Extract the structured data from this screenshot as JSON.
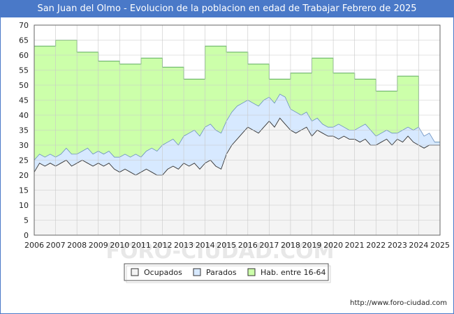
{
  "page": {
    "title": "San Juan del Olmo - Evolucion de la poblacion en edad de Trabajar Febrero de 2025",
    "url": "http://www.foro-ciudad.com",
    "watermark": "FORO-CIUDAD.COM"
  },
  "chart_data": {
    "type": "area",
    "title": "San Juan del Olmo - Evolucion de la poblacion en edad de Trabajar Febrero de 2025",
    "xlabel": "",
    "ylabel": "",
    "x_range": [
      2006,
      2025
    ],
    "ylim": [
      0,
      70
    ],
    "y_ticks": [
      "0",
      "5",
      "10",
      "15",
      "20",
      "25",
      "30",
      "35",
      "40",
      "45",
      "50",
      "55",
      "60",
      "65",
      "70"
    ],
    "x_ticks": [
      "2006",
      "2007",
      "2008",
      "2009",
      "2010",
      "2011",
      "2012",
      "2013",
      "2014",
      "2015",
      "2016",
      "2017",
      "2018",
      "2019",
      "2020",
      "2021",
      "2022",
      "2023",
      "2024",
      "2025"
    ],
    "grid": true,
    "legend_position": "bottom",
    "colors": {
      "hab": "#ccffaa",
      "hab_line": "#5aaa5a",
      "parados": "#d7e9ff",
      "parados_line": "#6a8fbf",
      "ocupados": "#f4f4f4",
      "ocupados_line": "#333333",
      "grid": "#c8c8c8"
    },
    "series": [
      {
        "name": "Hab. entre 16-64",
        "yearly_values": [
          63,
          65,
          61,
          58,
          57,
          59,
          56,
          52,
          63,
          61,
          57,
          52,
          54,
          59,
          54,
          52,
          48,
          53,
          31
        ]
      },
      {
        "name": "Parados",
        "x": [
          2006,
          2006.25,
          2006.5,
          2006.75,
          2007,
          2007.25,
          2007.5,
          2007.75,
          2008,
          2008.25,
          2008.5,
          2008.75,
          2009,
          2009.25,
          2009.5,
          2009.75,
          2010,
          2010.25,
          2010.5,
          2010.75,
          2011,
          2011.25,
          2011.5,
          2011.75,
          2012,
          2012.25,
          2012.5,
          2012.75,
          2013,
          2013.25,
          2013.5,
          2013.75,
          2014,
          2014.25,
          2014.5,
          2014.75,
          2015,
          2015.25,
          2015.5,
          2015.75,
          2016,
          2016.25,
          2016.5,
          2016.75,
          2017,
          2017.25,
          2017.5,
          2017.75,
          2018,
          2018.25,
          2018.5,
          2018.75,
          2019,
          2019.25,
          2019.5,
          2019.75,
          2020,
          2020.25,
          2020.5,
          2020.75,
          2021,
          2021.25,
          2021.5,
          2021.75,
          2022,
          2022.25,
          2022.5,
          2022.75,
          2023,
          2023.25,
          2023.5,
          2023.75,
          2024,
          2024.25,
          2024.5,
          2024.75,
          2025
        ],
        "values": [
          25,
          27,
          26,
          27,
          26,
          27,
          29,
          27,
          27,
          28,
          29,
          27,
          28,
          27,
          28,
          26,
          26,
          27,
          26,
          27,
          26,
          28,
          29,
          28,
          30,
          31,
          32,
          30,
          33,
          34,
          35,
          33,
          36,
          37,
          35,
          34,
          38,
          41,
          43,
          44,
          45,
          44,
          43,
          45,
          46,
          44,
          47,
          46,
          42,
          41,
          40,
          41,
          38,
          39,
          37,
          36,
          36,
          37,
          36,
          35,
          35,
          36,
          37,
          35,
          33,
          34,
          35,
          34,
          34,
          35,
          36,
          35,
          36,
          33,
          34,
          31,
          31
        ]
      },
      {
        "name": "Ocupados",
        "x": [
          2006,
          2006.25,
          2006.5,
          2006.75,
          2007,
          2007.25,
          2007.5,
          2007.75,
          2008,
          2008.25,
          2008.5,
          2008.75,
          2009,
          2009.25,
          2009.5,
          2009.75,
          2010,
          2010.25,
          2010.5,
          2010.75,
          2011,
          2011.25,
          2011.5,
          2011.75,
          2012,
          2012.25,
          2012.5,
          2012.75,
          2013,
          2013.25,
          2013.5,
          2013.75,
          2014,
          2014.25,
          2014.5,
          2014.75,
          2015,
          2015.25,
          2015.5,
          2015.75,
          2016,
          2016.25,
          2016.5,
          2016.75,
          2017,
          2017.25,
          2017.5,
          2017.75,
          2018,
          2018.25,
          2018.5,
          2018.75,
          2019,
          2019.25,
          2019.5,
          2019.75,
          2020,
          2020.25,
          2020.5,
          2020.75,
          2021,
          2021.25,
          2021.5,
          2021.75,
          2022,
          2022.25,
          2022.5,
          2022.75,
          2023,
          2023.25,
          2023.5,
          2023.75,
          2024,
          2024.25,
          2024.5,
          2024.75,
          2025
        ],
        "values": [
          21,
          24,
          23,
          24,
          23,
          24,
          25,
          23,
          24,
          25,
          24,
          23,
          24,
          23,
          24,
          22,
          21,
          22,
          21,
          20,
          21,
          22,
          21,
          20,
          20,
          22,
          23,
          22,
          24,
          23,
          24,
          22,
          24,
          25,
          23,
          22,
          27,
          30,
          32,
          34,
          36,
          35,
          34,
          36,
          38,
          36,
          39,
          37,
          35,
          34,
          35,
          36,
          33,
          35,
          34,
          33,
          33,
          32,
          33,
          32,
          32,
          31,
          32,
          30,
          30,
          31,
          32,
          30,
          32,
          31,
          33,
          31,
          30,
          29,
          30,
          30,
          30
        ]
      }
    ],
    "legend": [
      "Ocupados",
      "Parados",
      "Hab. entre 16-64"
    ]
  }
}
